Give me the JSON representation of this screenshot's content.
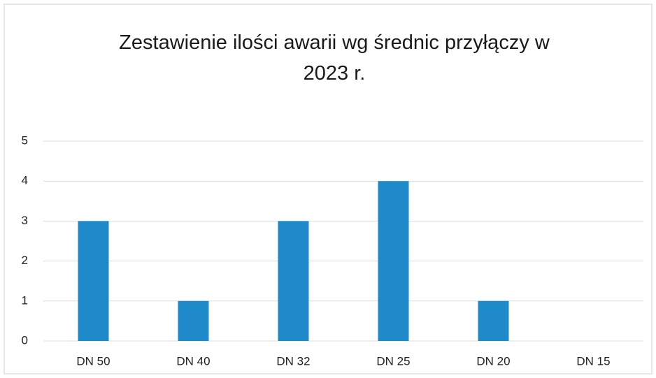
{
  "chart_data": {
    "type": "bar",
    "title": "Zestawienie ilości awarii wg średnic przyłączy w 2023 r.",
    "categories": [
      "DN 50",
      "DN 40",
      "DN 32",
      "DN 25",
      "DN 20",
      "DN 15"
    ],
    "values": [
      3,
      1,
      3,
      4,
      1,
      0
    ],
    "color": "#1f8ac9",
    "ylim": [
      0,
      5
    ],
    "yticks": [
      0,
      1,
      2,
      3,
      4,
      5
    ],
    "grid": true
  }
}
